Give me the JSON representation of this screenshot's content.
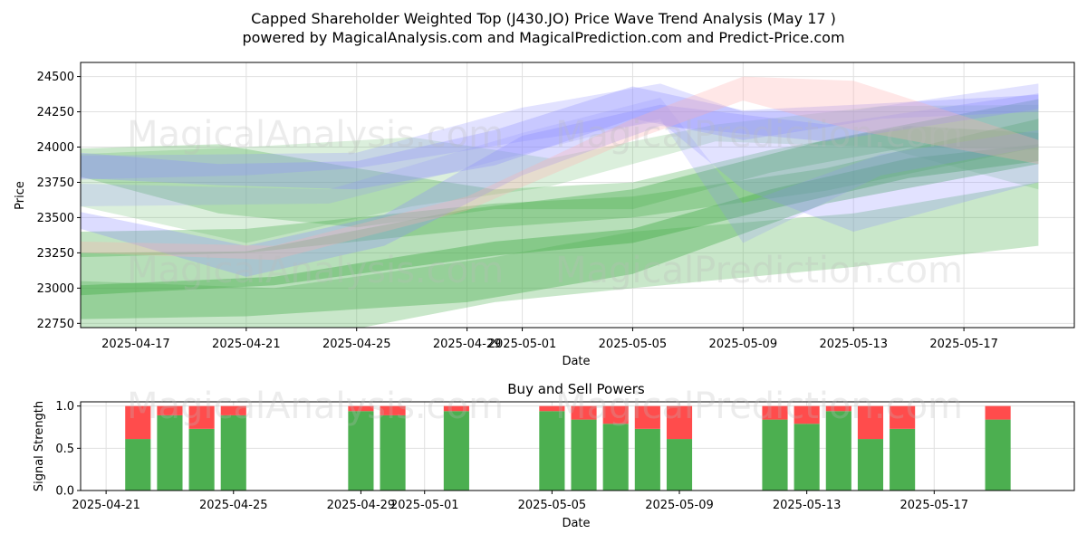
{
  "colors": {
    "buy": "#4caf50",
    "sell": "#ff4c4c",
    "band_green": "#4caf50",
    "band_blue": "#8c8cff",
    "band_pink": "#ffb0b0",
    "grid": "#e0e0e0"
  },
  "watermarks": [
    "MagicalAnalysis.com",
    "MagicalPrediction.com"
  ],
  "chart_data": [
    {
      "type": "area",
      "title": "Capped Shareholder Weighted Top (J430.JO) Price Wave Trend Analysis (May 17 )",
      "subtitle": "powered by MagicalAnalysis.com and MagicalPrediction.com and Predict-Price.com",
      "xlabel": "Date",
      "ylabel": "Price",
      "x_range": [
        "2025-04-15",
        "2025-05-21"
      ],
      "ylim": [
        22720,
        24600
      ],
      "grid": true,
      "x_ticks": [
        "2025-04-17",
        "2025-04-21",
        "2025-04-25",
        "2025-04-29",
        "2025-05-01",
        "2025-05-05",
        "2025-05-09",
        "2025-05-13",
        "2025-05-17"
      ],
      "y_ticks": [
        22750,
        23000,
        23250,
        23500,
        23750,
        24000,
        24250,
        24500
      ],
      "bands": [
        {
          "color": "green",
          "opacity": 0.45,
          "x": [
            "2025-04-15",
            "2025-04-22",
            "2025-04-30",
            "2025-05-05",
            "2025-05-10",
            "2025-05-15",
            "2025-05-19.7"
          ],
          "upper": [
            23020,
            23080,
            23330,
            23420,
            23700,
            23920,
            24020
          ],
          "lower": [
            22950,
            23020,
            23230,
            23320,
            23560,
            23780,
            23900
          ]
        },
        {
          "color": "green",
          "opacity": 0.35,
          "x": [
            "2025-04-15",
            "2025-04-21",
            "2025-04-30",
            "2025-05-05",
            "2025-05-12",
            "2025-05-19.7"
          ],
          "upper": [
            23400,
            23420,
            23600,
            23650,
            23850,
            24200
          ],
          "lower": [
            23220,
            23250,
            23430,
            23500,
            23690,
            24000
          ]
        },
        {
          "color": "green",
          "opacity": 0.4,
          "x": [
            "2025-04-15",
            "2025-04-21",
            "2025-04-29",
            "2025-05-05",
            "2025-05-12",
            "2025-05-19.7"
          ],
          "upper": [
            23250,
            23260,
            23560,
            23700,
            24050,
            24340
          ],
          "lower": [
            22780,
            22800,
            22900,
            23100,
            23600,
            23880
          ]
        },
        {
          "color": "green",
          "opacity": 0.3,
          "x": [
            "2025-04-15",
            "2025-04-22",
            "2025-04-30",
            "2025-05-05",
            "2025-05-13",
            "2025-05-19.7"
          ],
          "upper": [
            23050,
            23000,
            23220,
            23400,
            23530,
            23750
          ],
          "lower": [
            22560,
            22600,
            22900,
            23000,
            23150,
            23300
          ]
        },
        {
          "color": "green",
          "opacity": 0.3,
          "x": [
            "2025-04-15",
            "2025-04-20",
            "2025-04-25",
            "2025-04-30",
            "2025-05-05",
            "2025-05-10",
            "2025-05-15",
            "2025-05-19.7"
          ],
          "upper": [
            23990,
            24020,
            23850,
            23700,
            23750,
            23980,
            24150,
            24100
          ],
          "lower": [
            23790,
            23530,
            23430,
            23560,
            23560,
            23820,
            24000,
            23980
          ]
        },
        {
          "color": "green",
          "opacity": 0.2,
          "x": [
            "2025-04-15",
            "2025-04-21",
            "2025-04-27",
            "2025-05-02",
            "2025-05-08",
            "2025-05-14",
            "2025-05-19.7"
          ],
          "upper": [
            23950,
            24000,
            24070,
            23920,
            24160,
            24290,
            24300
          ],
          "lower": [
            23580,
            23320,
            23580,
            23720,
            24040,
            24000,
            23700
          ]
        },
        {
          "color": "blue",
          "opacity": 0.3,
          "x": [
            "2025-04-15",
            "2025-04-20",
            "2025-04-25",
            "2025-04-30",
            "2025-05-05",
            "2025-05-09",
            "2025-05-14",
            "2025-05-19.7"
          ],
          "upper": [
            23960,
            23880,
            23900,
            24120,
            24430,
            24260,
            24310,
            24370
          ],
          "lower": [
            23780,
            23730,
            23700,
            23870,
            24200,
            24050,
            24200,
            24250
          ]
        },
        {
          "color": "blue",
          "opacity": 0.3,
          "x": [
            "2025-04-15",
            "2025-04-21",
            "2025-04-26",
            "2025-05-01",
            "2025-05-06",
            "2025-05-12",
            "2025-05-19.7"
          ],
          "upper": [
            23540,
            23300,
            23520,
            24080,
            24300,
            24160,
            24380
          ],
          "lower": [
            23420,
            23080,
            23300,
            23800,
            24150,
            24040,
            24270
          ]
        },
        {
          "color": "blue",
          "opacity": 0.25,
          "x": [
            "2025-04-15",
            "2025-04-21",
            "2025-04-25",
            "2025-05-01",
            "2025-05-06",
            "2025-05-09",
            "2025-05-13",
            "2025-05-19.7"
          ],
          "upper": [
            23940,
            23950,
            23960,
            24280,
            24450,
            24250,
            24260,
            24450
          ],
          "lower": [
            23770,
            23800,
            23850,
            24040,
            24180,
            23700,
            23400,
            23750
          ]
        },
        {
          "color": "blue",
          "opacity": 0.2,
          "x": [
            "2025-04-15",
            "2025-04-24",
            "2025-05-01",
            "2025-05-06",
            "2025-05-09",
            "2025-05-14",
            "2025-05-19.7"
          ],
          "upper": [
            23740,
            23700,
            24100,
            24350,
            23600,
            23950,
            24120
          ],
          "lower": [
            23580,
            23600,
            23950,
            24200,
            23320,
            23800,
            24000
          ]
        },
        {
          "color": "pink",
          "opacity": 0.3,
          "x": [
            "2025-04-15",
            "2025-04-22",
            "2025-04-29",
            "2025-05-05",
            "2025-05-09",
            "2025-05-13",
            "2025-05-19.7"
          ],
          "upper": [
            23330,
            23300,
            23650,
            24200,
            24500,
            24470,
            24050
          ],
          "lower": [
            23250,
            23200,
            23550,
            24050,
            24330,
            24120,
            23880
          ]
        }
      ]
    },
    {
      "type": "bar",
      "stacked": true,
      "title": "Buy and Sell Powers",
      "xlabel": "Date",
      "ylabel": "Signal Strength",
      "x_range": [
        "2025-04-20.2",
        "2025-05-21.4"
      ],
      "ylim": [
        0,
        1.05
      ],
      "grid": true,
      "x_ticks": [
        "2025-04-21",
        "2025-04-25",
        "2025-04-29",
        "2025-05-01",
        "2025-05-05",
        "2025-05-09",
        "2025-05-13",
        "2025-05-17"
      ],
      "y_ticks": [
        "0.0",
        "0.5",
        "1.0"
      ],
      "series": [
        {
          "name": "Buy",
          "color": "#4caf50",
          "dates": [
            "2025-04-22",
            "2025-04-23",
            "2025-04-24",
            "2025-04-25",
            "2025-04-29",
            "2025-04-30",
            "2025-05-02",
            "2025-05-05",
            "2025-05-06",
            "2025-05-07",
            "2025-05-08",
            "2025-05-09",
            "2025-05-12",
            "2025-05-13",
            "2025-05-14",
            "2025-05-15",
            "2025-05-16",
            "2025-05-19"
          ],
          "values": [
            0.61,
            0.89,
            0.73,
            0.89,
            0.94,
            0.89,
            0.94,
            0.94,
            0.84,
            0.79,
            0.73,
            0.61,
            0.84,
            0.79,
            0.94,
            0.61,
            0.73,
            0.84
          ]
        },
        {
          "name": "Sell",
          "color": "#ff4c4c",
          "dates": [
            "2025-04-22",
            "2025-04-23",
            "2025-04-24",
            "2025-04-25",
            "2025-04-29",
            "2025-04-30",
            "2025-05-02",
            "2025-05-05",
            "2025-05-06",
            "2025-05-07",
            "2025-05-08",
            "2025-05-09",
            "2025-05-12",
            "2025-05-13",
            "2025-05-14",
            "2025-05-15",
            "2025-05-16",
            "2025-05-19"
          ],
          "values": [
            0.39,
            0.11,
            0.27,
            0.11,
            0.06,
            0.11,
            0.06,
            0.06,
            0.16,
            0.21,
            0.27,
            0.39,
            0.16,
            0.21,
            0.06,
            0.39,
            0.27,
            0.16
          ]
        }
      ]
    }
  ]
}
